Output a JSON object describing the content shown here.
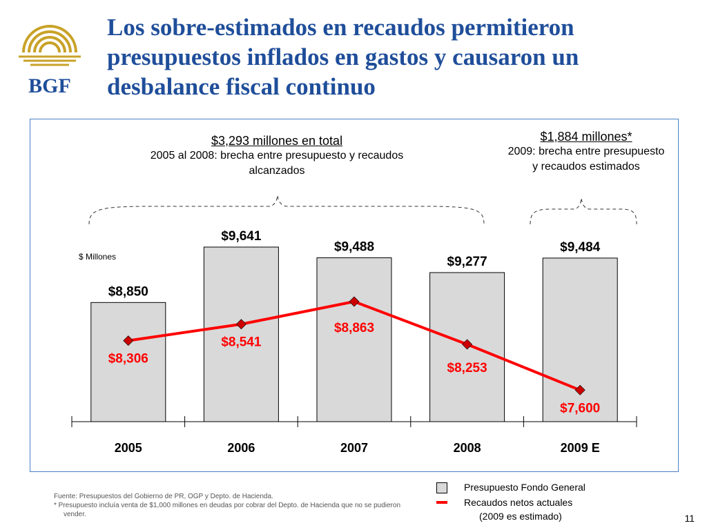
{
  "slide": {
    "logo_text": "BGF",
    "title": "Los sobre-estimados en recaudos permitieron presupuestos inflados en gastos y causaron un desbalance fiscal continuo",
    "page_number": "11"
  },
  "annotations": {
    "left_total": "$3,293 millones en total",
    "left_desc": "2005 al 2008: brecha entre presupuesto y recaudos alcanzados",
    "right_total": "$1,884 millones*",
    "right_desc": "2009: brecha entre presupuesto y recaudos estimados"
  },
  "legend": {
    "budget": "Presupuesto Fondo General",
    "revenue": "Recaudos netos actuales",
    "revenue_note": "(2009 es estimado)"
  },
  "source": {
    "line1": "Fuente: Presupuestos del Gobierno de PR, OGP y Depto. de Hacienda.",
    "line2": "*   Presupuesto incluía venta de $1,000 millones en deudas por cobrar del Depto. de Hacienda que no se pudieron vender."
  },
  "colors": {
    "title": "#1F4E9A",
    "bar_fill": "#D9D9D9",
    "line": "#FF0000",
    "marker": "#CC0000",
    "logo_gold": "#C9A227",
    "logo_blue": "#1F4E9A"
  },
  "chart_data": {
    "type": "bar",
    "unit_label": "$ Millones",
    "categories": [
      "2005",
      "2006",
      "2007",
      "2008",
      "2009 E"
    ],
    "series": [
      {
        "name": "Presupuesto Fondo General",
        "type": "bar",
        "values": [
          8850,
          9641,
          9488,
          9277,
          9484
        ],
        "labels": [
          "$8,850",
          "$9,641",
          "$9,488",
          "$9,277",
          "$9,484"
        ]
      },
      {
        "name": "Recaudos netos actuales",
        "type": "line",
        "values": [
          8306,
          8541,
          8863,
          8253,
          7600
        ],
        "labels": [
          "$8,306",
          "$8,541",
          "$8,863",
          "$8,253",
          "$7,600"
        ]
      }
    ],
    "grid": false
  }
}
